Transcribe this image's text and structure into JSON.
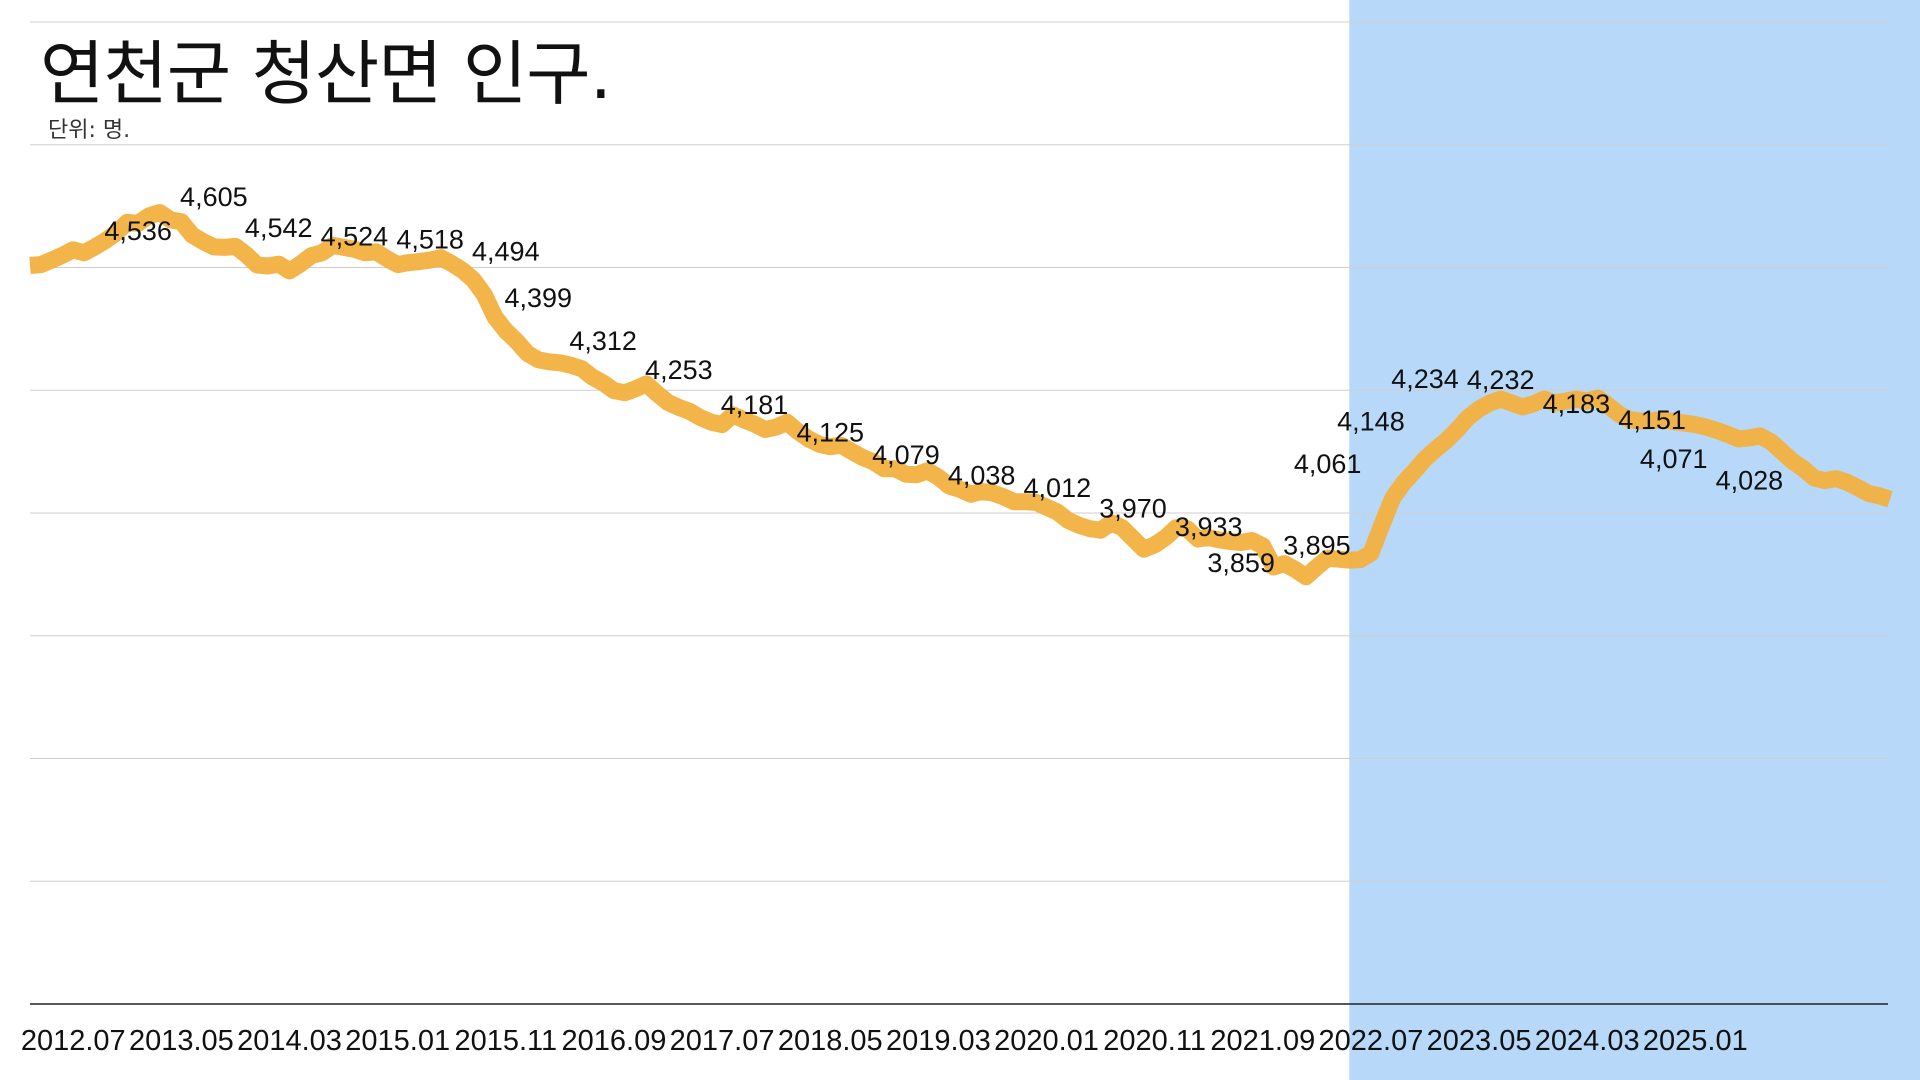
{
  "header": {
    "title": "연천군 청산면 인구.",
    "subtitle": "단위: 명."
  },
  "colors": {
    "line": "#f2b13f",
    "highlight": "#b7d8f8",
    "grid": "#cfcfcf",
    "axis": "#222222"
  },
  "chart_data": {
    "type": "line",
    "title": "연천군 청산면 인구.",
    "subtitle": "단위: 명.",
    "ylim": [
      3000,
      5000
    ],
    "grid": true,
    "highlight_from": "2022.05",
    "x_ticks": [
      "2012.07",
      "2013.05",
      "2014.03",
      "2015.01",
      "2015.11",
      "2016.09",
      "2017.07",
      "2018.05",
      "2019.03",
      "2020.01",
      "2020.11",
      "2021.09",
      "2022.07",
      "2023.05",
      "2024.03",
      "2025.01"
    ],
    "series": [
      {
        "values": [
          4504,
          4506,
          4515,
          4525,
          4536,
          4530,
          4542,
          4555,
          4571,
          4592,
          4590,
          4605,
          4612,
          4597,
          4593,
          4566,
          4553,
          4542,
          4541,
          4543,
          4526,
          4505,
          4503,
          4507,
          4493,
          4507,
          4524,
          4530,
          4545,
          4541,
          4537,
          4530,
          4532,
          4518,
          4506,
          4510,
          4512,
          4515,
          4520,
          4508,
          4494,
          4475,
          4445,
          4399,
          4371,
          4350,
          4325,
          4312,
          4308,
          4306,
          4301,
          4294,
          4277,
          4265,
          4249,
          4245,
          4253,
          4263,
          4243,
          4225,
          4215,
          4207,
          4194,
          4185,
          4180,
          4200,
          4190,
          4181,
          4170,
          4175,
          4185,
          4166,
          4151,
          4140,
          4135,
          4138,
          4125,
          4113,
          4104,
          4090,
          4090,
          4079,
          4078,
          4086,
          4073,
          4055,
          4048,
          4038,
          4044,
          4041,
          4033,
          4023,
          4023,
          4022,
          4012,
          4002,
          3985,
          3975,
          3968,
          3965,
          3980,
          3970,
          3948,
          3926,
          3935,
          3950,
          3970,
          3968,
          3947,
          3950,
          3945,
          3942,
          3940,
          3944,
          3933,
          3890,
          3897,
          3885,
          3870,
          3890,
          3908,
          3906,
          3904,
          3905,
          3918,
          3975,
          4030,
          4061,
          4085,
          4110,
          4130,
          4148,
          4170,
          4195,
          4212,
          4224,
          4232,
          4224,
          4216,
          4222,
          4232,
          4224,
          4228,
          4232,
          4228,
          4234,
          4218,
          4200,
          4190,
          4187,
          4188,
          4190,
          4186,
          4183,
          4180,
          4175,
          4168,
          4160,
          4151,
          4153,
          4157,
          4145,
          4125,
          4105,
          4090,
          4071,
          4066,
          4070,
          4063,
          4052,
          4040,
          4035,
          4028
        ]
      }
    ],
    "data_labels": [
      {
        "x": "2013.01",
        "value": 4536,
        "text": "4,536"
      },
      {
        "x": "2013.08",
        "value": 4605,
        "text": "4,605"
      },
      {
        "x": "2014.02",
        "value": 4542,
        "text": "4,542"
      },
      {
        "x": "2014.09",
        "value": 4524,
        "text": "4,524"
      },
      {
        "x": "2015.04",
        "value": 4518,
        "text": "4,518"
      },
      {
        "x": "2015.11",
        "value": 4494,
        "text": "4,494"
      },
      {
        "x": "2016.02",
        "value": 4399,
        "text": "4,399"
      },
      {
        "x": "2016.08",
        "value": 4312,
        "text": "4,312"
      },
      {
        "x": "2017.03",
        "value": 4253,
        "text": "4,253"
      },
      {
        "x": "2017.10",
        "value": 4181,
        "text": "4,181"
      },
      {
        "x": "2018.05",
        "value": 4125,
        "text": "4,125"
      },
      {
        "x": "2018.12",
        "value": 4079,
        "text": "4,079"
      },
      {
        "x": "2019.07",
        "value": 4038,
        "text": "4,038"
      },
      {
        "x": "2020.02",
        "value": 4012,
        "text": "4,012"
      },
      {
        "x": "2020.09",
        "value": 3970,
        "text": "3,970"
      },
      {
        "x": "2021.04",
        "value": 3933,
        "text": "3,933"
      },
      {
        "x": "2021.07",
        "value": 3859,
        "text": "3,859"
      },
      {
        "x": "2022.02",
        "value": 3895,
        "text": "3,895"
      },
      {
        "x": "2022.03",
        "value": 4061,
        "text": "4,061"
      },
      {
        "x": "2022.07",
        "value": 4148,
        "text": "4,148"
      },
      {
        "x": "2022.12",
        "value": 4234,
        "text": "4,234"
      },
      {
        "x": "2023.07",
        "value": 4232,
        "text": "4,232"
      },
      {
        "x": "2024.02",
        "value": 4183,
        "text": "4,183"
      },
      {
        "x": "2024.09",
        "value": 4151,
        "text": "4,151"
      },
      {
        "x": "2024.11",
        "value": 4071,
        "text": "4,071"
      },
      {
        "x": "2025.06",
        "value": 4028,
        "text": "4,028"
      }
    ]
  }
}
